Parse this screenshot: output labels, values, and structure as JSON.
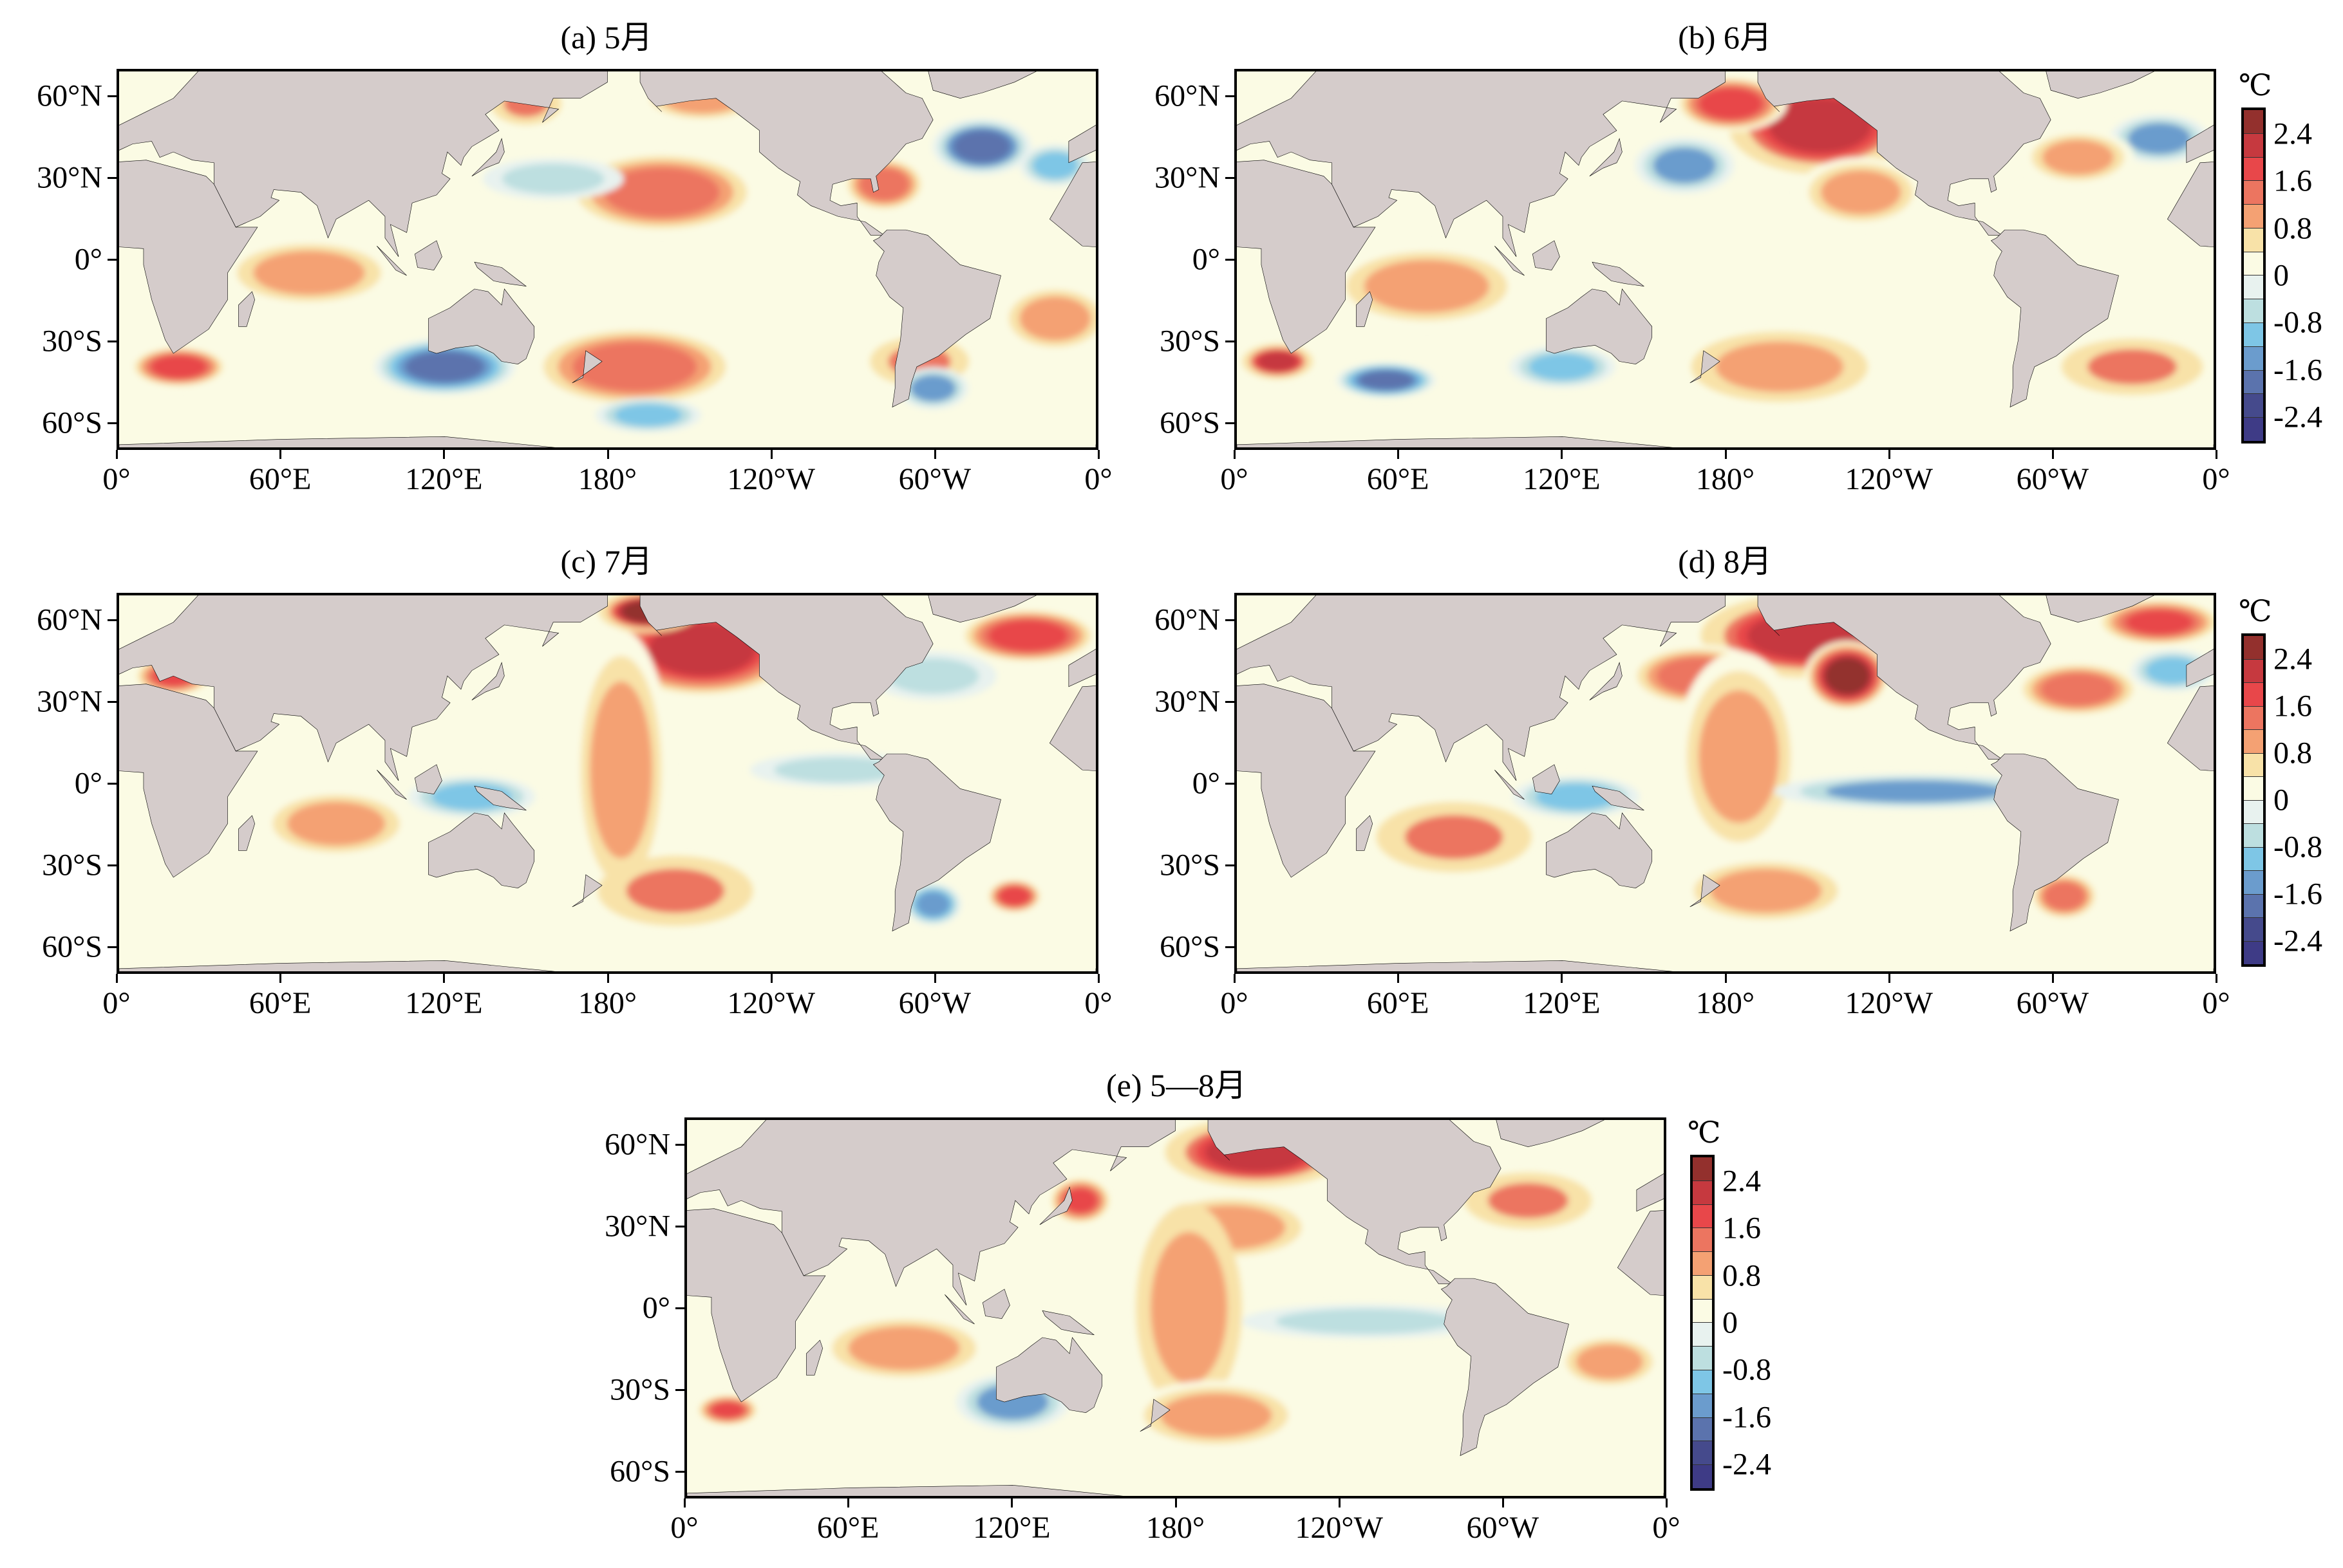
{
  "figure": {
    "unit": "℃",
    "colorbar_labels": [
      "2.4",
      "1.6",
      "0.8",
      "0",
      "-0.8",
      "-1.6",
      "-2.4"
    ],
    "colorbar_colors": [
      "#93302d",
      "#c6393f",
      "#e8474a",
      "#ec7560",
      "#f4a173",
      "#f8e2a8",
      "#fbfbe4",
      "#e8f2ef",
      "#bddfe0",
      "#7ec6e6",
      "#6b9ccd",
      "#5b73ad",
      "#454a8c",
      "#3e3b86"
    ],
    "land_color": "#d5cccb",
    "x_ticks": [
      "0°",
      "60°E",
      "120°E",
      "180°",
      "120°W",
      "60°W",
      "0°"
    ],
    "y_ticks": [
      "60°N",
      "30°N",
      "0°",
      "30°S",
      "60°S"
    ]
  },
  "chart_data": {
    "type": "heatmap",
    "variable": "SST anomaly (℃)",
    "value_range": [
      -2.8,
      2.8
    ],
    "lon_range": [
      0,
      360
    ],
    "lat_range": [
      -70,
      70
    ],
    "panels": [
      {
        "id": "a",
        "title": "(a) 5月",
        "anomalies": [
          {
            "lon": 200,
            "lat": 25,
            "rx": 28,
            "ry": 12,
            "v": 1.4
          },
          {
            "lon": 150,
            "lat": 58,
            "rx": 10,
            "ry": 6,
            "v": 1.2
          },
          {
            "lon": 215,
            "lat": 60,
            "rx": 18,
            "ry": 7,
            "v": 1.0
          },
          {
            "lon": 70,
            "lat": -5,
            "rx": 25,
            "ry": 10,
            "v": 1.0
          },
          {
            "lon": 22,
            "lat": -40,
            "rx": 14,
            "ry": 6,
            "v": 1.8
          },
          {
            "lon": 190,
            "lat": -40,
            "rx": 30,
            "ry": 12,
            "v": 1.3
          },
          {
            "lon": 295,
            "lat": -38,
            "rx": 14,
            "ry": 7,
            "v": 1.2
          },
          {
            "lon": 345,
            "lat": -22,
            "rx": 16,
            "ry": 10,
            "v": 1.0
          },
          {
            "lon": 120,
            "lat": -40,
            "rx": 20,
            "ry": 8,
            "v": -1.8
          },
          {
            "lon": 195,
            "lat": -58,
            "rx": 15,
            "ry": 5,
            "v": -1.0
          },
          {
            "lon": 300,
            "lat": -48,
            "rx": 10,
            "ry": 6,
            "v": -1.2
          },
          {
            "lon": 318,
            "lat": 42,
            "rx": 14,
            "ry": 8,
            "v": -1.6
          },
          {
            "lon": 160,
            "lat": 30,
            "rx": 20,
            "ry": 6,
            "v": -0.7
          },
          {
            "lon": 282,
            "lat": 28,
            "rx": 12,
            "ry": 8,
            "v": 1.4
          },
          {
            "lon": 345,
            "lat": 35,
            "rx": 10,
            "ry": 6,
            "v": -0.9
          }
        ]
      },
      {
        "id": "b",
        "title": "(b) 6月",
        "anomalies": [
          {
            "lon": 215,
            "lat": 50,
            "rx": 26,
            "ry": 14,
            "v": 2.0
          },
          {
            "lon": 182,
            "lat": 58,
            "rx": 16,
            "ry": 8,
            "v": 1.8
          },
          {
            "lon": 230,
            "lat": 25,
            "rx": 18,
            "ry": 10,
            "v": 1.0
          },
          {
            "lon": 165,
            "lat": 35,
            "rx": 14,
            "ry": 8,
            "v": -1.2
          },
          {
            "lon": 70,
            "lat": -10,
            "rx": 28,
            "ry": 12,
            "v": 0.9
          },
          {
            "lon": 15,
            "lat": -38,
            "rx": 10,
            "ry": 5,
            "v": 2.0
          },
          {
            "lon": 55,
            "lat": -45,
            "rx": 14,
            "ry": 5,
            "v": -1.8
          },
          {
            "lon": 330,
            "lat": -40,
            "rx": 20,
            "ry": 8,
            "v": 1.2
          },
          {
            "lon": 340,
            "lat": 45,
            "rx": 14,
            "ry": 7,
            "v": -1.2
          },
          {
            "lon": 310,
            "lat": 38,
            "rx": 16,
            "ry": 8,
            "v": 1.0
          },
          {
            "lon": 200,
            "lat": -40,
            "rx": 25,
            "ry": 10,
            "v": 0.8
          },
          {
            "lon": 120,
            "lat": -40,
            "rx": 15,
            "ry": 6,
            "v": -0.9
          }
        ]
      },
      {
        "id": "c",
        "title": "(c) 7月",
        "anomalies": [
          {
            "lon": 215,
            "lat": 50,
            "rx": 28,
            "ry": 14,
            "v": 2.2
          },
          {
            "lon": 195,
            "lat": 64,
            "rx": 14,
            "ry": 6,
            "v": 2.4
          },
          {
            "lon": 185,
            "lat": 5,
            "rx": 14,
            "ry": 40,
            "v": 0.9
          },
          {
            "lon": 205,
            "lat": -40,
            "rx": 22,
            "ry": 10,
            "v": 1.2
          },
          {
            "lon": 80,
            "lat": -15,
            "rx": 22,
            "ry": 10,
            "v": 1.0
          },
          {
            "lon": 130,
            "lat": -5,
            "rx": 18,
            "ry": 6,
            "v": -1.0
          },
          {
            "lon": 335,
            "lat": 55,
            "rx": 20,
            "ry": 8,
            "v": 1.8
          },
          {
            "lon": 300,
            "lat": 40,
            "rx": 18,
            "ry": 7,
            "v": -0.8
          },
          {
            "lon": 265,
            "lat": 5,
            "rx": 25,
            "ry": 5,
            "v": -0.6
          },
          {
            "lon": 300,
            "lat": -45,
            "rx": 8,
            "ry": 6,
            "v": -1.4
          },
          {
            "lon": 330,
            "lat": -42,
            "rx": 8,
            "ry": 5,
            "v": 1.8
          },
          {
            "lon": 20,
            "lat": 40,
            "rx": 10,
            "ry": 5,
            "v": 1.6
          }
        ]
      },
      {
        "id": "d",
        "title": "(d) 8月",
        "anomalies": [
          {
            "lon": 210,
            "lat": 55,
            "rx": 30,
            "ry": 12,
            "v": 2.0
          },
          {
            "lon": 225,
            "lat": 40,
            "rx": 12,
            "ry": 10,
            "v": 2.6
          },
          {
            "lon": 170,
            "lat": 40,
            "rx": 20,
            "ry": 9,
            "v": 1.4
          },
          {
            "lon": 185,
            "lat": 10,
            "rx": 18,
            "ry": 30,
            "v": 1.0
          },
          {
            "lon": 80,
            "lat": -20,
            "rx": 22,
            "ry": 10,
            "v": 1.2
          },
          {
            "lon": 125,
            "lat": -5,
            "rx": 18,
            "ry": 6,
            "v": -1.0
          },
          {
            "lon": 250,
            "lat": -3,
            "rx": 40,
            "ry": 5,
            "v": -1.2
          },
          {
            "lon": 310,
            "lat": 35,
            "rx": 18,
            "ry": 8,
            "v": 1.4
          },
          {
            "lon": 340,
            "lat": 60,
            "rx": 16,
            "ry": 6,
            "v": 1.6
          },
          {
            "lon": 345,
            "lat": 42,
            "rx": 12,
            "ry": 6,
            "v": -1.0
          },
          {
            "lon": 305,
            "lat": -42,
            "rx": 10,
            "ry": 7,
            "v": 1.4
          },
          {
            "lon": 195,
            "lat": -40,
            "rx": 25,
            "ry": 10,
            "v": 0.9
          }
        ]
      },
      {
        "id": "e",
        "title": "(e) 5—8月",
        "anomalies": [
          {
            "lon": 210,
            "lat": 58,
            "rx": 26,
            "ry": 10,
            "v": 2.0
          },
          {
            "lon": 200,
            "lat": 30,
            "rx": 25,
            "ry": 10,
            "v": 1.0
          },
          {
            "lon": 185,
            "lat": 0,
            "rx": 15,
            "ry": 30,
            "v": 0.8
          },
          {
            "lon": 80,
            "lat": -15,
            "rx": 25,
            "ry": 10,
            "v": 0.9
          },
          {
            "lon": 120,
            "lat": -35,
            "rx": 16,
            "ry": 8,
            "v": -1.2
          },
          {
            "lon": 195,
            "lat": -40,
            "rx": 25,
            "ry": 10,
            "v": 1.0
          },
          {
            "lon": 310,
            "lat": 40,
            "rx": 18,
            "ry": 8,
            "v": 1.2
          },
          {
            "lon": 340,
            "lat": -20,
            "rx": 15,
            "ry": 8,
            "v": 0.9
          },
          {
            "lon": 15,
            "lat": -38,
            "rx": 8,
            "ry": 4,
            "v": 1.6
          },
          {
            "lon": 250,
            "lat": -5,
            "rx": 35,
            "ry": 5,
            "v": -0.5
          },
          {
            "lon": 145,
            "lat": 40,
            "rx": 8,
            "ry": 6,
            "v": 1.6
          }
        ]
      }
    ]
  }
}
